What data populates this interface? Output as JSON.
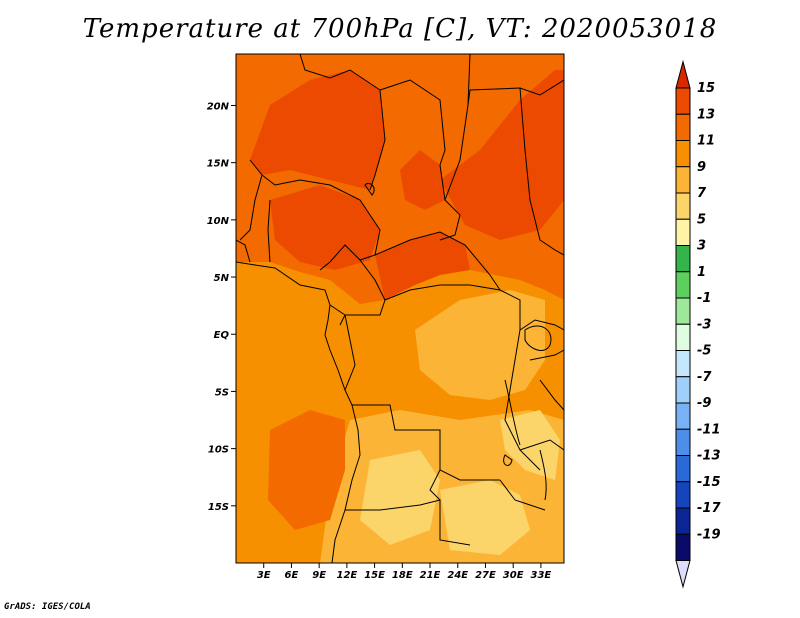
{
  "title": "Temperature at 700hPa [C], VT: 2020053018",
  "credit": "GrADS: IGES/COLA",
  "map": {
    "lon_range": [
      0,
      35.5
    ],
    "lat_range": [
      -20,
      24.5
    ],
    "lat_ticks": [
      {
        "value": 20,
        "label": "20N"
      },
      {
        "value": 15,
        "label": "15N"
      },
      {
        "value": 10,
        "label": "10N"
      },
      {
        "value": 5,
        "label": "5N"
      },
      {
        "value": 0,
        "label": "EQ"
      },
      {
        "value": -5,
        "label": "5S"
      },
      {
        "value": -10,
        "label": "10S"
      },
      {
        "value": -15,
        "label": "15S"
      }
    ],
    "lon_ticks": [
      {
        "value": 3,
        "label": "3E"
      },
      {
        "value": 6,
        "label": "6E"
      },
      {
        "value": 9,
        "label": "9E"
      },
      {
        "value": 12,
        "label": "12E"
      },
      {
        "value": 15,
        "label": "15E"
      },
      {
        "value": 18,
        "label": "18E"
      },
      {
        "value": 21,
        "label": "21E"
      },
      {
        "value": 24,
        "label": "24E"
      },
      {
        "value": 27,
        "label": "27E"
      },
      {
        "value": 30,
        "label": "30E"
      },
      {
        "value": 33,
        "label": "33E"
      }
    ]
  },
  "colorbar": {
    "levels": [
      "15",
      "13",
      "11",
      "9",
      "7",
      "5",
      "3",
      "1",
      "-1",
      "-3",
      "-5",
      "-7",
      "-9",
      "-11",
      "-13",
      "-15",
      "-17",
      "-19"
    ],
    "colors": [
      "#d82800",
      "#ec4a00",
      "#f26a00",
      "#f79000",
      "#fbb436",
      "#fcd56a",
      "#fff4a6",
      "#34b44a",
      "#5ccf5c",
      "#9ee89c",
      "#ddfce0",
      "#c4e6fc",
      "#a0d0fa",
      "#78b2f4",
      "#4e8ee8",
      "#2a6ad8",
      "#1644bc",
      "#0c2596",
      "#0a0a68",
      "#dcdcff"
    ]
  },
  "regions": [
    {
      "name": "warm-background",
      "color": "#f79000"
    },
    {
      "name": "hot-north",
      "color": "#f26a00"
    },
    {
      "name": "hottest-sahara",
      "color": "#ec4a00"
    },
    {
      "name": "cool-south",
      "color": "#fbb436"
    },
    {
      "name": "coolest-south",
      "color": "#fcd56a"
    }
  ]
}
